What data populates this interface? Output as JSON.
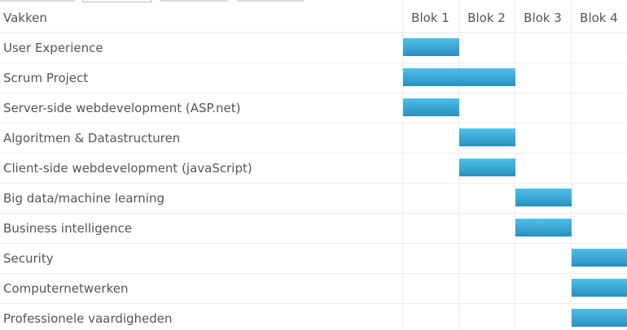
{
  "chart_data": {
    "type": "gantt",
    "header": {
      "label_column": "Vakken",
      "periods": [
        "Blok 1",
        "Blok 2",
        "Blok 3",
        "Blok 4"
      ]
    },
    "tasks": [
      {
        "name": "User Experience",
        "start": 1,
        "end": 1
      },
      {
        "name": "Scrum Project",
        "start": 1,
        "end": 2
      },
      {
        "name": "Server-side webdevelopment (ASP.net)",
        "start": 1,
        "end": 1
      },
      {
        "name": "Algoritmen & Datastructuren",
        "start": 2,
        "end": 2
      },
      {
        "name": "Client-side webdevelopment (javaScript)",
        "start": 2,
        "end": 2
      },
      {
        "name": "Big data/machine learning",
        "start": 3,
        "end": 3
      },
      {
        "name": "Business intelligence",
        "start": 3,
        "end": 3
      },
      {
        "name": "Security",
        "start": 4,
        "end": 4
      },
      {
        "name": "Computernetwerken",
        "start": 4,
        "end": 4
      },
      {
        "name": "Professionele vaardigheden",
        "start": 4,
        "end": 4
      }
    ],
    "bar_color": "#3aaedb",
    "grid": true
  },
  "tabs": [
    {
      "name": "tab-1"
    },
    {
      "name": "tab-2"
    },
    {
      "name": "tab-3"
    },
    {
      "name": "tab-4"
    }
  ]
}
